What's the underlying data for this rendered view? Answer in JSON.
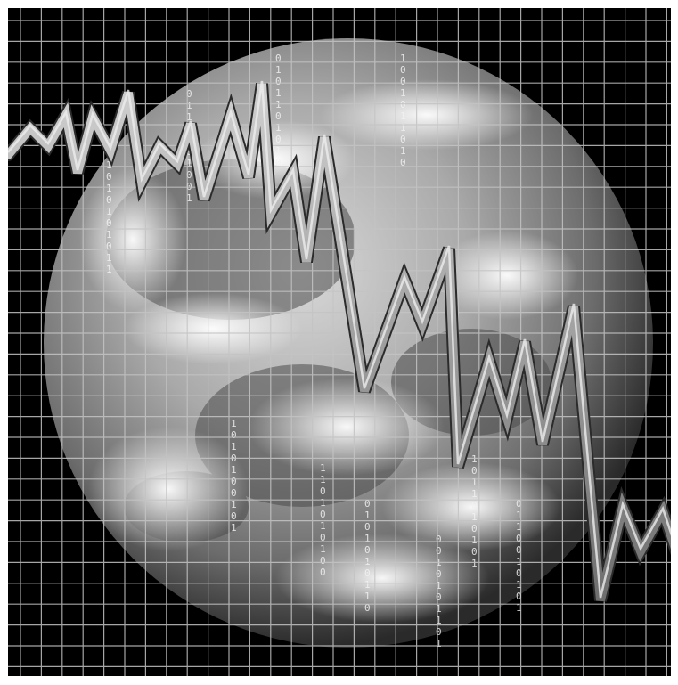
{
  "image": {
    "subject": "globe-with-grid-and-falling-line",
    "palette": {
      "background": "#000000",
      "grid": "#bdbdbd",
      "line": "#9a9a9a",
      "binary_text": "#f0f0f0"
    }
  },
  "binary_columns": [
    [
      "1",
      "0",
      "1",
      "0",
      "1",
      "0",
      "1",
      "0",
      "1",
      "1"
    ],
    [
      "0",
      "1",
      "1",
      "0",
      "1",
      "0",
      "1",
      "0",
      "0",
      "1"
    ],
    [
      "1",
      "0",
      "1",
      "0",
      "1",
      "0",
      "0",
      "1",
      "0",
      "1"
    ],
    [
      "0",
      "1",
      "0",
      "1",
      "1",
      "0",
      "1",
      "0",
      "1",
      "0"
    ],
    [
      "1",
      "1",
      "0",
      "1",
      "0",
      "1",
      "0",
      "1",
      "0",
      "0"
    ],
    [
      "0",
      "1",
      "0",
      "1",
      "0",
      "1",
      "0",
      "1",
      "1",
      "0"
    ],
    [
      "1",
      "0",
      "0",
      "1",
      "0",
      "1",
      "1",
      "0",
      "1",
      "0"
    ],
    [
      "0",
      "0",
      "1",
      "0",
      "1",
      "0",
      "1",
      "1",
      "0",
      "1"
    ],
    [
      "1",
      "0",
      "1",
      "1",
      "0",
      "1",
      "0",
      "1",
      "0",
      "1"
    ],
    [
      "0",
      "1",
      "1",
      "0",
      "0",
      "1",
      "0",
      "1",
      "0",
      "1"
    ]
  ]
}
